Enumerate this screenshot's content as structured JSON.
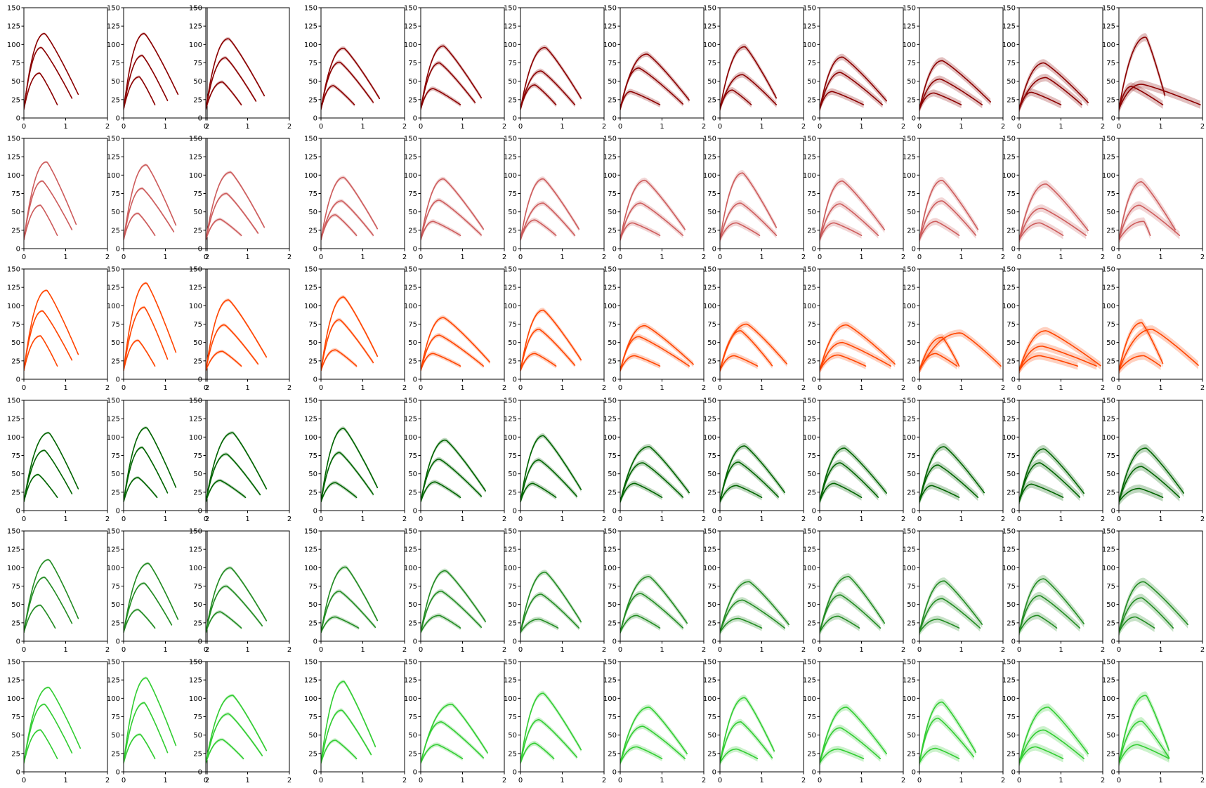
{
  "chart_data": {
    "type": "line",
    "layout": {
      "rows": 6,
      "cols": 12
    },
    "xlim": [
      0,
      2
    ],
    "ylim": [
      0,
      150
    ],
    "xticks": [
      "0",
      "1",
      "2"
    ],
    "yticks": [
      "0",
      "25",
      "50",
      "75",
      "100",
      "125",
      "150"
    ],
    "grid": false,
    "row_colors": [
      "#8b0000",
      "#cd5c5c",
      "#ff4500",
      "#006400",
      "#228b22",
      "#32cd32"
    ],
    "panels": [
      [
        [
          [
            0.5,
            115,
            1.3
          ],
          [
            0.42,
            96,
            1.15
          ],
          [
            0.38,
            61,
            0.8
          ]
        ],
        [
          [
            0.5,
            115,
            1.3
          ],
          [
            0.45,
            85,
            1.05
          ],
          [
            0.38,
            56,
            0.75
          ]
        ],
        [
          [
            0.55,
            108,
            1.4
          ],
          [
            0.48,
            82,
            1.2
          ],
          [
            0.4,
            49,
            0.85
          ]
        ],
        [
          [
            0.55,
            95,
            1.4
          ],
          [
            0.45,
            76,
            1.25
          ],
          [
            0.3,
            44,
            0.8
          ]
        ],
        [
          [
            0.55,
            98,
            1.45
          ],
          [
            0.45,
            75,
            1.3
          ],
          [
            0.3,
            40,
            0.95
          ]
        ],
        [
          [
            0.6,
            96,
            1.45
          ],
          [
            0.5,
            64,
            1.3
          ],
          [
            0.35,
            45,
            0.85
          ]
        ],
        [
          [
            0.65,
            87,
            1.65
          ],
          [
            0.45,
            68,
            1.5
          ],
          [
            0.25,
            36,
            0.95
          ]
        ],
        [
          [
            0.6,
            97,
            1.35
          ],
          [
            0.55,
            59,
            1.35
          ],
          [
            0.3,
            38,
            0.75
          ]
        ],
        [
          [
            0.55,
            83,
            1.6
          ],
          [
            0.5,
            62,
            1.5
          ],
          [
            0.3,
            36,
            1.05
          ]
        ],
        [
          [
            0.55,
            78,
            1.7
          ],
          [
            0.5,
            53,
            1.5
          ],
          [
            0.35,
            34,
            1.0
          ]
        ],
        [
          [
            0.6,
            75,
            1.65
          ],
          [
            0.65,
            55,
            1.5
          ],
          [
            0.3,
            35,
            1.0
          ]
        ],
        [
          [
            0.65,
            110,
            1.1
          ],
          [
            0.55,
            46,
            1.95
          ],
          [
            0.3,
            43,
            1.05
          ]
        ]
      ],
      [
        [
          [
            0.55,
            118,
            1.25
          ],
          [
            0.45,
            92,
            1.15
          ],
          [
            0.4,
            59,
            0.8
          ]
        ],
        [
          [
            0.55,
            114,
            1.25
          ],
          [
            0.45,
            82,
            1.2
          ],
          [
            0.35,
            48,
            0.75
          ]
        ],
        [
          [
            0.6,
            104,
            1.4
          ],
          [
            0.5,
            75,
            1.25
          ],
          [
            0.35,
            40,
            0.85
          ]
        ],
        [
          [
            0.55,
            97,
            1.35
          ],
          [
            0.5,
            65,
            1.25
          ],
          [
            0.35,
            46,
            0.85
          ]
        ],
        [
          [
            0.55,
            95,
            1.5
          ],
          [
            0.45,
            66,
            1.45
          ],
          [
            0.3,
            37,
            0.95
          ]
        ],
        [
          [
            0.55,
            95,
            1.4
          ],
          [
            0.55,
            62,
            1.3
          ],
          [
            0.35,
            39,
            0.85
          ]
        ],
        [
          [
            0.6,
            93,
            1.55
          ],
          [
            0.5,
            62,
            1.5
          ],
          [
            0.3,
            35,
            0.95
          ]
        ],
        [
          [
            0.55,
            103,
            1.35
          ],
          [
            0.5,
            62,
            1.35
          ],
          [
            0.4,
            35,
            0.95
          ]
        ],
        [
          [
            0.55,
            92,
            1.55
          ],
          [
            0.5,
            61,
            1.4
          ],
          [
            0.35,
            35,
            1.0
          ]
        ],
        [
          [
            0.55,
            93,
            1.4
          ],
          [
            0.55,
            65,
            1.35
          ],
          [
            0.4,
            37,
            0.95
          ]
        ],
        [
          [
            0.65,
            88,
            1.65
          ],
          [
            0.55,
            55,
            1.6
          ],
          [
            0.5,
            35,
            1.05
          ]
        ],
        [
          [
            0.55,
            91,
            1.35
          ],
          [
            0.5,
            59,
            1.45
          ],
          [
            0.6,
            37,
            0.75
          ]
        ]
      ],
      [
        [
          [
            0.55,
            121,
            1.3
          ],
          [
            0.45,
            93,
            1.15
          ],
          [
            0.4,
            59,
            0.8
          ]
        ],
        [
          [
            0.55,
            131,
            1.25
          ],
          [
            0.5,
            98,
            1.05
          ],
          [
            0.35,
            53,
            0.75
          ]
        ],
        [
          [
            0.55,
            108,
            1.45
          ],
          [
            0.45,
            74,
            1.25
          ],
          [
            0.4,
            38,
            0.85
          ]
        ],
        [
          [
            0.55,
            112,
            1.35
          ],
          [
            0.45,
            81,
            1.25
          ],
          [
            0.35,
            40,
            0.85
          ]
        ],
        [
          [
            0.55,
            84,
            1.65
          ],
          [
            0.45,
            60,
            1.5
          ],
          [
            0.3,
            35,
            0.95
          ]
        ],
        [
          [
            0.55,
            94,
            1.45
          ],
          [
            0.45,
            68,
            1.3
          ],
          [
            0.35,
            35,
            0.85
          ]
        ],
        [
          [
            0.6,
            73,
            1.75
          ],
          [
            0.45,
            58,
            1.65
          ],
          [
            0.35,
            32,
            0.95
          ]
        ],
        [
          [
            0.65,
            75,
            1.6
          ],
          [
            0.5,
            66,
            1.25
          ],
          [
            0.35,
            32,
            0.9
          ]
        ],
        [
          [
            0.65,
            74,
            1.8
          ],
          [
            0.55,
            50,
            1.7
          ],
          [
            0.45,
            33,
            1.1
          ]
        ],
        [
          [
            1.0,
            63,
            1.95
          ],
          [
            0.55,
            57,
            0.95
          ],
          [
            0.4,
            35,
            0.9
          ]
        ],
        [
          [
            0.65,
            66,
            1.95
          ],
          [
            0.55,
            45,
            1.85
          ],
          [
            0.5,
            32,
            1.4
          ]
        ],
        [
          [
            0.55,
            77,
            1.05
          ],
          [
            0.8,
            68,
            1.9
          ],
          [
            0.6,
            32,
            1.0
          ]
        ]
      ],
      [
        [
          [
            0.6,
            106,
            1.3
          ],
          [
            0.5,
            82,
            1.15
          ],
          [
            0.35,
            49,
            0.8
          ]
        ],
        [
          [
            0.55,
            113,
            1.25
          ],
          [
            0.45,
            86,
            1.05
          ],
          [
            0.35,
            45,
            0.8
          ]
        ],
        [
          [
            0.65,
            106,
            1.45
          ],
          [
            0.5,
            77,
            1.3
          ],
          [
            0.35,
            41,
            0.95
          ]
        ],
        [
          [
            0.55,
            112,
            1.35
          ],
          [
            0.45,
            79,
            1.25
          ],
          [
            0.35,
            38,
            0.85
          ]
        ],
        [
          [
            0.6,
            96,
            1.55
          ],
          [
            0.45,
            70,
            1.45
          ],
          [
            0.35,
            39,
            0.95
          ]
        ],
        [
          [
            0.55,
            102,
            1.45
          ],
          [
            0.45,
            69,
            1.35
          ],
          [
            0.3,
            37,
            0.85
          ]
        ],
        [
          [
            0.7,
            87,
            1.65
          ],
          [
            0.55,
            65,
            1.5
          ],
          [
            0.35,
            37,
            1.0
          ]
        ],
        [
          [
            0.6,
            88,
            1.55
          ],
          [
            0.45,
            66,
            1.4
          ],
          [
            0.4,
            34,
            1.0
          ]
        ],
        [
          [
            0.6,
            85,
            1.6
          ],
          [
            0.5,
            65,
            1.4
          ],
          [
            0.35,
            37,
            1.0
          ]
        ],
        [
          [
            0.6,
            87,
            1.55
          ],
          [
            0.45,
            62,
            1.4
          ],
          [
            0.3,
            34,
            0.95
          ]
        ],
        [
          [
            0.6,
            84,
            1.55
          ],
          [
            0.5,
            65,
            1.45
          ],
          [
            0.3,
            36,
            1.05
          ]
        ],
        [
          [
            0.65,
            85,
            1.55
          ],
          [
            0.55,
            60,
            1.45
          ],
          [
            0.5,
            30,
            1.05
          ]
        ]
      ],
      [
        [
          [
            0.6,
            111,
            1.3
          ],
          [
            0.5,
            87,
            1.15
          ],
          [
            0.4,
            49,
            0.75
          ]
        ],
        [
          [
            0.6,
            106,
            1.3
          ],
          [
            0.5,
            79,
            1.15
          ],
          [
            0.35,
            43,
            0.75
          ]
        ],
        [
          [
            0.6,
            100,
            1.45
          ],
          [
            0.5,
            75,
            1.35
          ],
          [
            0.35,
            40,
            0.85
          ]
        ],
        [
          [
            0.6,
            101,
            1.35
          ],
          [
            0.45,
            68,
            1.3
          ],
          [
            0.35,
            33,
            0.9
          ]
        ],
        [
          [
            0.6,
            96,
            1.55
          ],
          [
            0.5,
            68,
            1.45
          ],
          [
            0.45,
            35,
            0.95
          ]
        ],
        [
          [
            0.6,
            94,
            1.45
          ],
          [
            0.5,
            64,
            1.4
          ],
          [
            0.45,
            30,
            0.9
          ]
        ],
        [
          [
            0.7,
            88,
            1.6
          ],
          [
            0.5,
            65,
            1.5
          ],
          [
            0.4,
            35,
            0.95
          ]
        ],
        [
          [
            0.7,
            81,
            1.65
          ],
          [
            0.55,
            56,
            1.55
          ],
          [
            0.45,
            31,
            1.0
          ]
        ],
        [
          [
            0.7,
            88,
            1.55
          ],
          [
            0.5,
            63,
            1.45
          ],
          [
            0.45,
            34,
            0.95
          ]
        ],
        [
          [
            0.6,
            82,
            1.5
          ],
          [
            0.55,
            58,
            1.45
          ],
          [
            0.45,
            30,
            0.95
          ]
        ],
        [
          [
            0.6,
            85,
            1.55
          ],
          [
            0.5,
            62,
            1.45
          ],
          [
            0.45,
            35,
            0.9
          ]
        ],
        [
          [
            0.6,
            81,
            1.65
          ],
          [
            0.55,
            59,
            1.3
          ],
          [
            0.4,
            33,
            0.85
          ]
        ]
      ],
      [
        [
          [
            0.6,
            115,
            1.35
          ],
          [
            0.5,
            92,
            1.15
          ],
          [
            0.4,
            57,
            0.8
          ]
        ],
        [
          [
            0.55,
            128,
            1.25
          ],
          [
            0.5,
            94,
            1.05
          ],
          [
            0.4,
            51,
            0.75
          ]
        ],
        [
          [
            0.65,
            104,
            1.45
          ],
          [
            0.55,
            79,
            1.35
          ],
          [
            0.4,
            44,
            0.9
          ]
        ],
        [
          [
            0.55,
            123,
            1.3
          ],
          [
            0.5,
            84,
            1.2
          ],
          [
            0.35,
            43,
            0.85
          ]
        ],
        [
          [
            0.75,
            92,
            1.6
          ],
          [
            0.5,
            68,
            1.5
          ],
          [
            0.4,
            37,
            1.0
          ]
        ],
        [
          [
            0.55,
            107,
            1.45
          ],
          [
            0.45,
            71,
            1.35
          ],
          [
            0.35,
            39,
            0.8
          ]
        ],
        [
          [
            0.7,
            88,
            1.6
          ],
          [
            0.55,
            62,
            1.55
          ],
          [
            0.4,
            34,
            1.0
          ]
        ],
        [
          [
            0.6,
            101,
            1.3
          ],
          [
            0.5,
            68,
            1.25
          ],
          [
            0.4,
            31,
            0.9
          ]
        ],
        [
          [
            0.65,
            88,
            1.6
          ],
          [
            0.5,
            60,
            1.45
          ],
          [
            0.45,
            31,
            1.05
          ]
        ],
        [
          [
            0.55,
            95,
            1.35
          ],
          [
            0.45,
            73,
            1.3
          ],
          [
            0.4,
            32,
            0.95
          ]
        ],
        [
          [
            0.7,
            88,
            1.65
          ],
          [
            0.6,
            57,
            1.55
          ],
          [
            0.4,
            34,
            1.05
          ]
        ],
        [
          [
            0.65,
            104,
            1.2
          ],
          [
            0.55,
            69,
            1.2
          ],
          [
            0.45,
            37,
            1.2
          ]
        ]
      ]
    ]
  }
}
